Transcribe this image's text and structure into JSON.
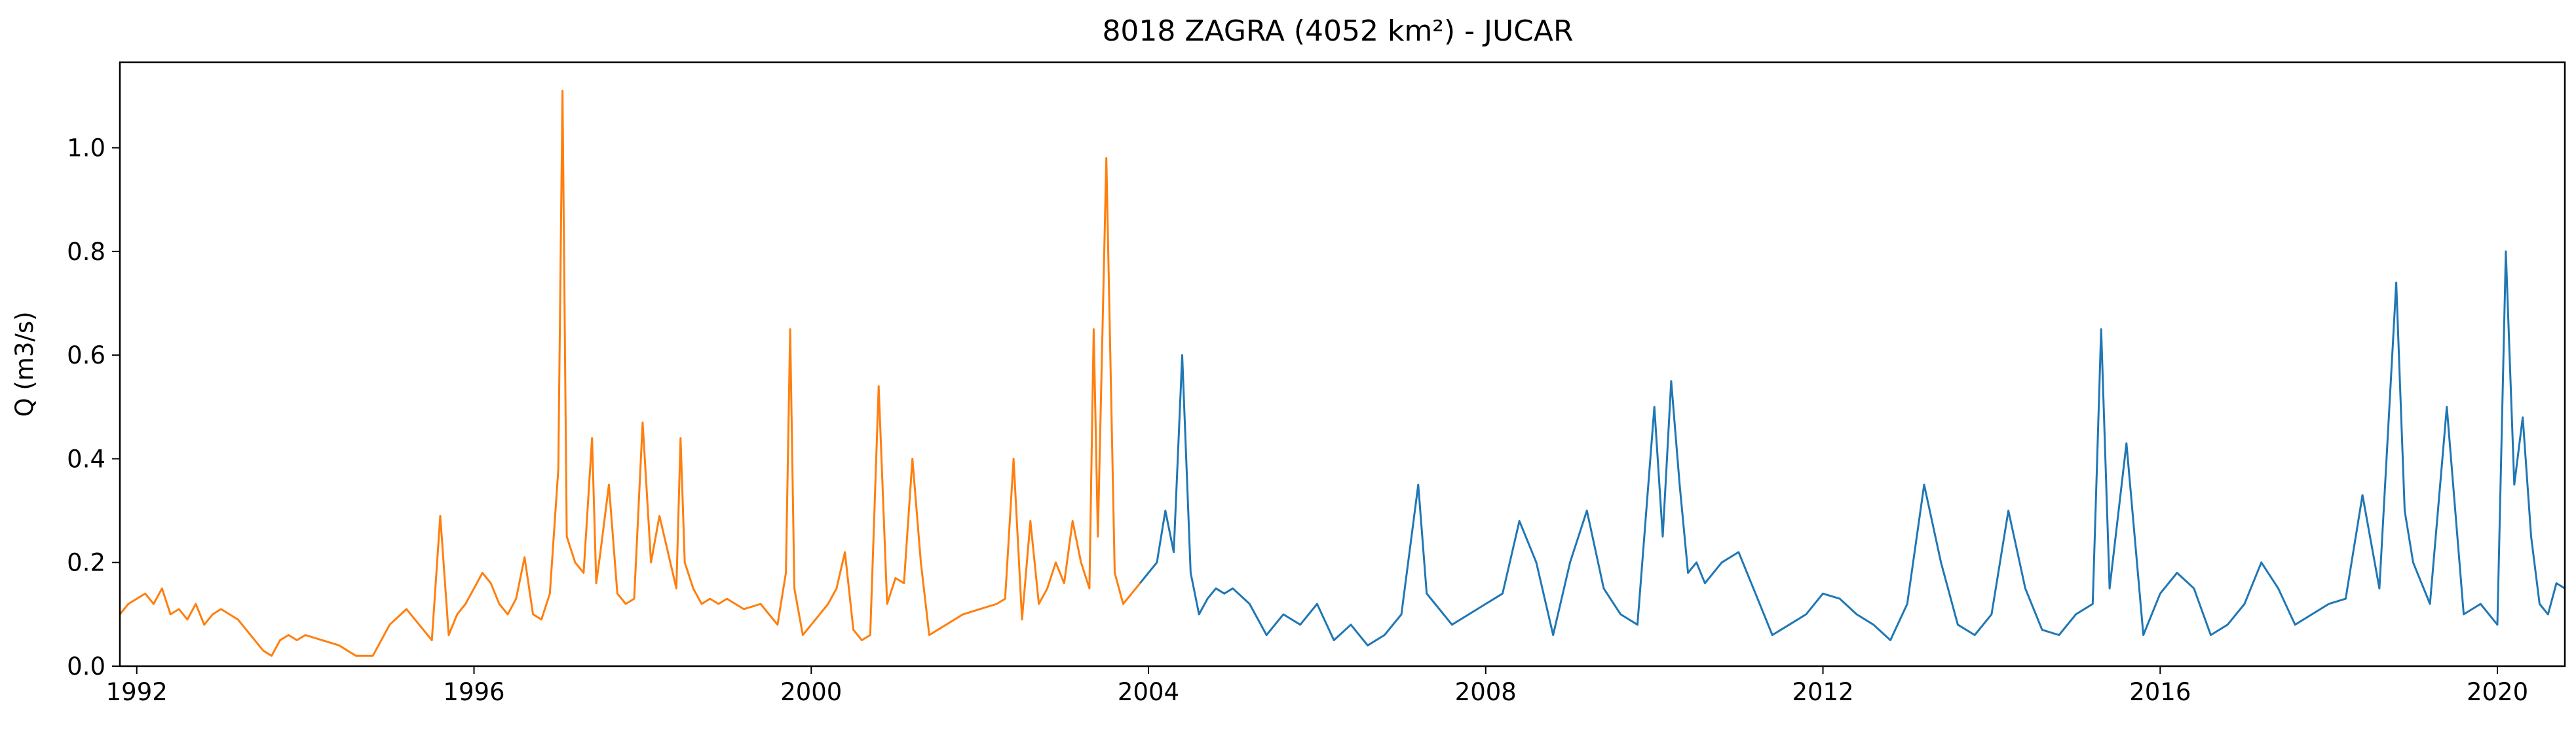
{
  "chart_data": {
    "type": "line",
    "title": "8018 ZAGRA (4052 km²) - JUCAR",
    "xlabel": "",
    "ylabel": "Q (m3/s)",
    "xlim": [
      1991.8,
      2020.8
    ],
    "ylim": [
      0.0,
      1.165
    ],
    "x_ticks": [
      1992,
      1996,
      2000,
      2004,
      2008,
      2012,
      2016,
      2020
    ],
    "y_ticks": [
      0.0,
      0.2,
      0.4,
      0.6,
      0.8,
      1.0
    ],
    "x_tick_labels": [
      "1992",
      "1996",
      "2000",
      "2004",
      "2008",
      "2012",
      "2016",
      "2020"
    ],
    "y_tick_labels": [
      "0.0",
      "0.2",
      "0.4",
      "0.6",
      "0.8",
      "1.0"
    ],
    "grid": false,
    "series": [
      {
        "color": "#ff7f0e",
        "x": [
          1991.8,
          1991.9,
          1992.0,
          1992.1,
          1992.2,
          1992.3,
          1992.4,
          1992.5,
          1992.6,
          1992.7,
          1992.8,
          1992.9,
          1993.0,
          1993.1,
          1993.2,
          1993.3,
          1993.4,
          1993.5,
          1993.6,
          1993.7,
          1993.8,
          1993.9,
          1994.0,
          1994.2,
          1994.4,
          1994.6,
          1994.8,
          1995.0,
          1995.2,
          1995.4,
          1995.5,
          1995.6,
          1995.7,
          1995.8,
          1995.9,
          1996.0,
          1996.1,
          1996.2,
          1996.3,
          1996.4,
          1996.5,
          1996.6,
          1996.7,
          1996.8,
          1996.9,
          1997.0,
          1997.05,
          1997.1,
          1997.2,
          1997.3,
          1997.4,
          1997.45,
          1997.5,
          1997.6,
          1997.7,
          1997.8,
          1997.9,
          1998.0,
          1998.1,
          1998.2,
          1998.3,
          1998.4,
          1998.45,
          1998.5,
          1998.6,
          1998.7,
          1998.8,
          1998.9,
          1999.0,
          1999.2,
          1999.4,
          1999.5,
          1999.6,
          1999.7,
          1999.75,
          1999.8,
          1999.9,
          2000.0,
          2000.1,
          2000.2,
          2000.3,
          2000.4,
          2000.5,
          2000.6,
          2000.7,
          2000.8,
          2000.9,
          2001.0,
          2001.1,
          2001.2,
          2001.3,
          2001.4,
          2001.6,
          2001.8,
          2002.0,
          2002.2,
          2002.3,
          2002.4,
          2002.5,
          2002.6,
          2002.7,
          2002.8,
          2002.9,
          2003.0,
          2003.1,
          2003.2,
          2003.3,
          2003.35,
          2003.4,
          2003.5,
          2003.6,
          2003.7,
          2003.8,
          2003.9
        ],
        "y": [
          0.1,
          0.12,
          0.13,
          0.14,
          0.12,
          0.15,
          0.1,
          0.11,
          0.09,
          0.12,
          0.08,
          0.1,
          0.11,
          0.1,
          0.09,
          0.07,
          0.05,
          0.03,
          0.02,
          0.05,
          0.06,
          0.05,
          0.06,
          0.05,
          0.04,
          0.02,
          0.02,
          0.08,
          0.11,
          0.07,
          0.05,
          0.29,
          0.06,
          0.1,
          0.12,
          0.15,
          0.18,
          0.16,
          0.12,
          0.1,
          0.13,
          0.21,
          0.1,
          0.09,
          0.14,
          0.38,
          1.11,
          0.25,
          0.2,
          0.18,
          0.44,
          0.16,
          0.22,
          0.35,
          0.14,
          0.12,
          0.13,
          0.47,
          0.2,
          0.29,
          0.22,
          0.15,
          0.44,
          0.2,
          0.15,
          0.12,
          0.13,
          0.12,
          0.13,
          0.11,
          0.12,
          0.1,
          0.08,
          0.18,
          0.65,
          0.15,
          0.06,
          0.08,
          0.1,
          0.12,
          0.15,
          0.22,
          0.07,
          0.05,
          0.06,
          0.54,
          0.12,
          0.17,
          0.16,
          0.4,
          0.2,
          0.06,
          0.08,
          0.1,
          0.11,
          0.12,
          0.13,
          0.4,
          0.09,
          0.28,
          0.12,
          0.15,
          0.2,
          0.16,
          0.28,
          0.2,
          0.15,
          0.65,
          0.25,
          0.98,
          0.18,
          0.12,
          0.14,
          0.16
        ]
      },
      {
        "color": "#1f77b4",
        "x": [
          2003.9,
          2004.0,
          2004.1,
          2004.2,
          2004.3,
          2004.4,
          2004.5,
          2004.6,
          2004.7,
          2004.8,
          2004.9,
          2005.0,
          2005.2,
          2005.4,
          2005.6,
          2005.8,
          2006.0,
          2006.2,
          2006.4,
          2006.6,
          2006.8,
          2007.0,
          2007.2,
          2007.3,
          2007.4,
          2007.6,
          2007.8,
          2008.0,
          2008.2,
          2008.4,
          2008.6,
          2008.8,
          2009.0,
          2009.2,
          2009.4,
          2009.6,
          2009.8,
          2010.0,
          2010.1,
          2010.2,
          2010.3,
          2010.4,
          2010.5,
          2010.6,
          2010.8,
          2011.0,
          2011.2,
          2011.4,
          2011.6,
          2011.8,
          2012.0,
          2012.2,
          2012.4,
          2012.6,
          2012.8,
          2013.0,
          2013.2,
          2013.4,
          2013.6,
          2013.8,
          2014.0,
          2014.2,
          2014.4,
          2014.6,
          2014.8,
          2015.0,
          2015.2,
          2015.3,
          2015.4,
          2015.6,
          2015.8,
          2016.0,
          2016.2,
          2016.4,
          2016.6,
          2016.8,
          2017.0,
          2017.2,
          2017.4,
          2017.6,
          2017.8,
          2018.0,
          2018.2,
          2018.4,
          2018.6,
          2018.8,
          2018.9,
          2019.0,
          2019.2,
          2019.4,
          2019.6,
          2019.8,
          2020.0,
          2020.1,
          2020.2,
          2020.3,
          2020.4,
          2020.5,
          2020.6,
          2020.7,
          2020.8
        ],
        "y": [
          0.16,
          0.18,
          0.2,
          0.3,
          0.22,
          0.6,
          0.18,
          0.1,
          0.13,
          0.15,
          0.14,
          0.15,
          0.12,
          0.06,
          0.1,
          0.08,
          0.12,
          0.05,
          0.08,
          0.04,
          0.06,
          0.1,
          0.35,
          0.14,
          0.12,
          0.08,
          0.1,
          0.12,
          0.14,
          0.28,
          0.2,
          0.06,
          0.2,
          0.3,
          0.15,
          0.1,
          0.08,
          0.5,
          0.25,
          0.55,
          0.35,
          0.18,
          0.2,
          0.16,
          0.2,
          0.22,
          0.14,
          0.06,
          0.08,
          0.1,
          0.14,
          0.13,
          0.1,
          0.08,
          0.05,
          0.12,
          0.35,
          0.2,
          0.08,
          0.06,
          0.1,
          0.3,
          0.15,
          0.07,
          0.06,
          0.1,
          0.12,
          0.65,
          0.15,
          0.43,
          0.06,
          0.14,
          0.18,
          0.15,
          0.06,
          0.08,
          0.12,
          0.2,
          0.15,
          0.08,
          0.1,
          0.12,
          0.13,
          0.33,
          0.15,
          0.74,
          0.3,
          0.2,
          0.12,
          0.5,
          0.1,
          0.12,
          0.08,
          0.8,
          0.35,
          0.48,
          0.25,
          0.12,
          0.1,
          0.16,
          0.15
        ]
      }
    ]
  }
}
